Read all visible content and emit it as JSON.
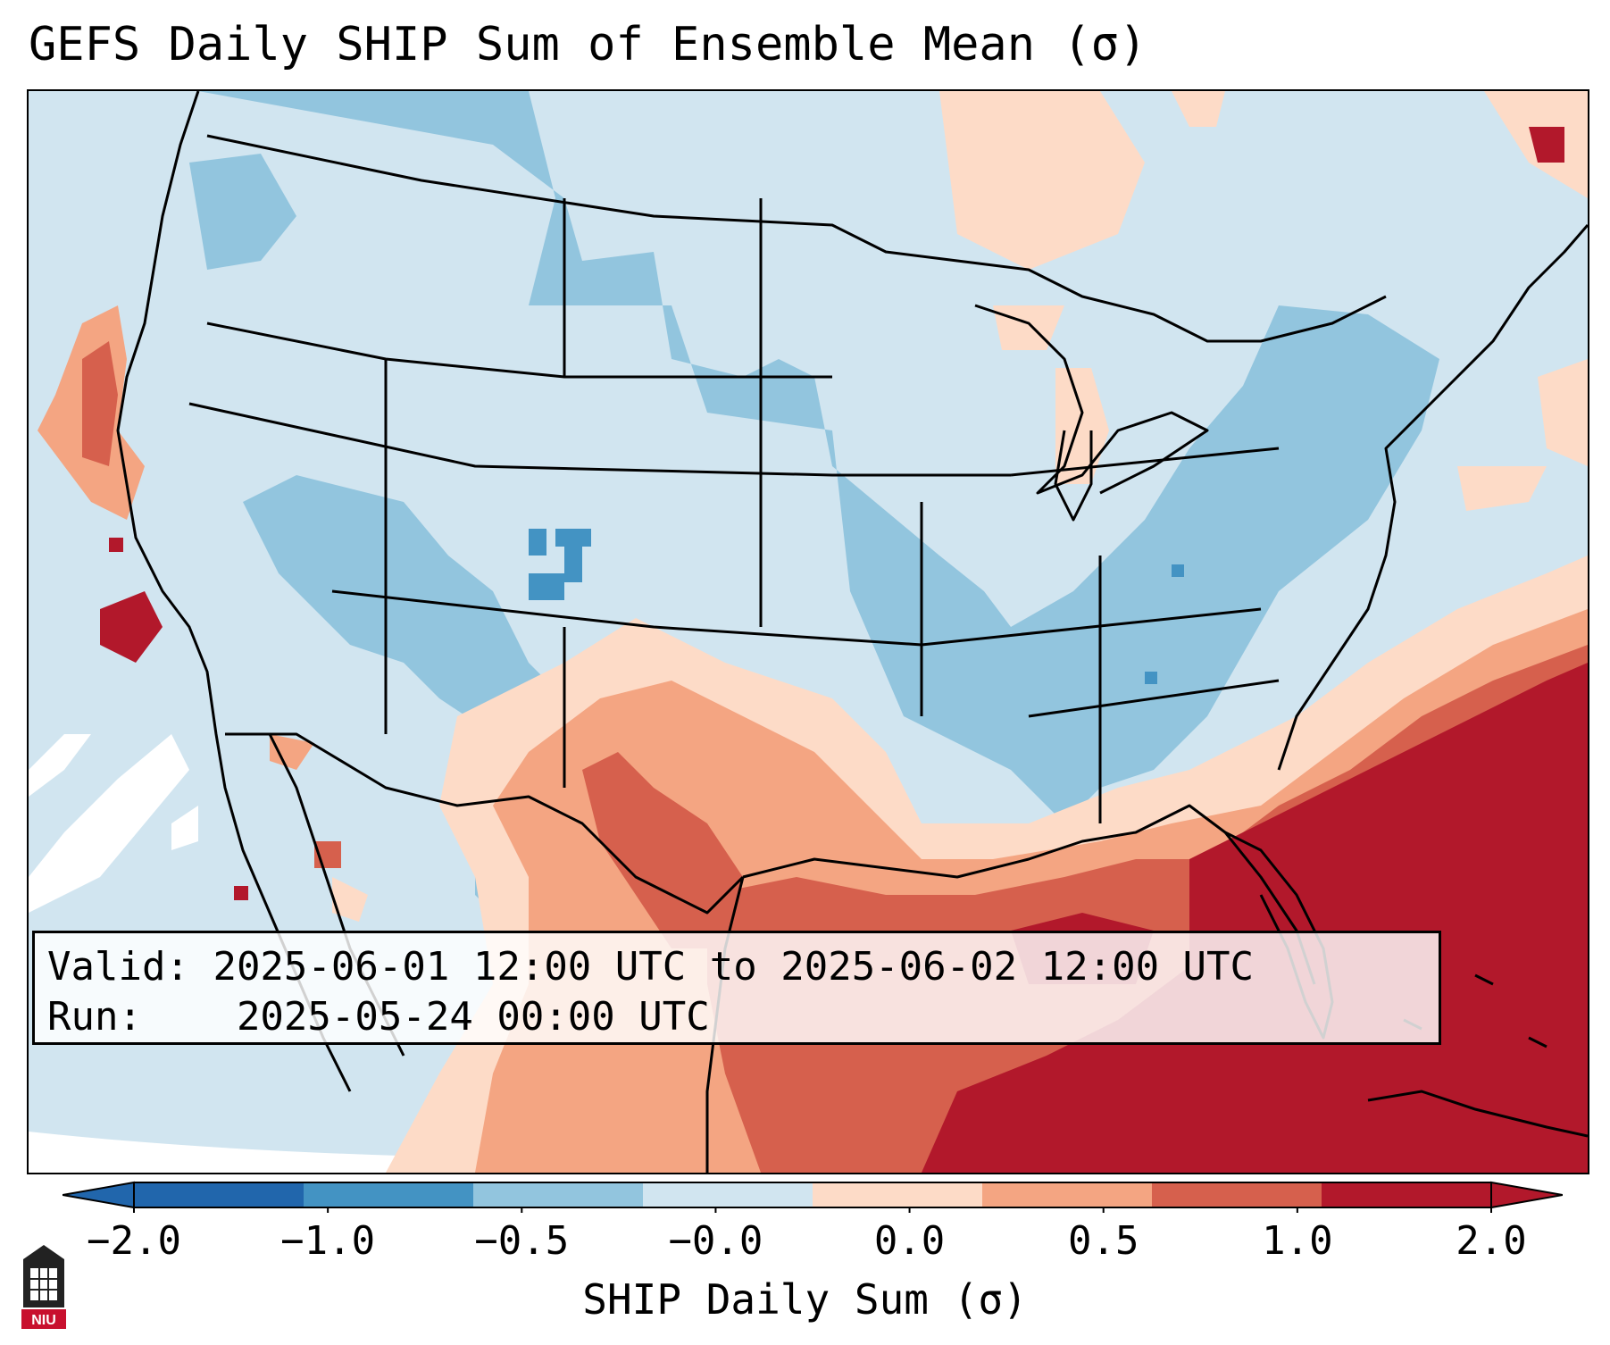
{
  "title": "GEFS Daily SHIP Sum of Ensemble Mean (σ)",
  "info": {
    "valid_label": "Valid:",
    "valid_value": "2025-06-01 12:00 UTC to 2025-06-02 12:00 UTC",
    "run_label": "Run:",
    "run_value": "2025-05-24 00:00 UTC"
  },
  "colorbar": {
    "label": "SHIP Daily Sum (σ)",
    "ticks": [
      "−2.0",
      "−1.0",
      "−0.5",
      "−0.0",
      "0.0",
      "0.5",
      "1.0",
      "2.0"
    ],
    "bin_colors": [
      "#2166ac",
      "#4393c3",
      "#92c5de",
      "#d1e5f0",
      "#fddbc7",
      "#f4a582",
      "#d6604d",
      "#b2182b"
    ],
    "under_color": "#2166ac",
    "over_color": "#b2182b"
  },
  "map": {
    "ocean_color": "#d1e5f0",
    "land_base_color": "#d1e5f0",
    "border_color": "#000000"
  },
  "logo": {
    "text": "NIU",
    "color": "#c8102e"
  }
}
